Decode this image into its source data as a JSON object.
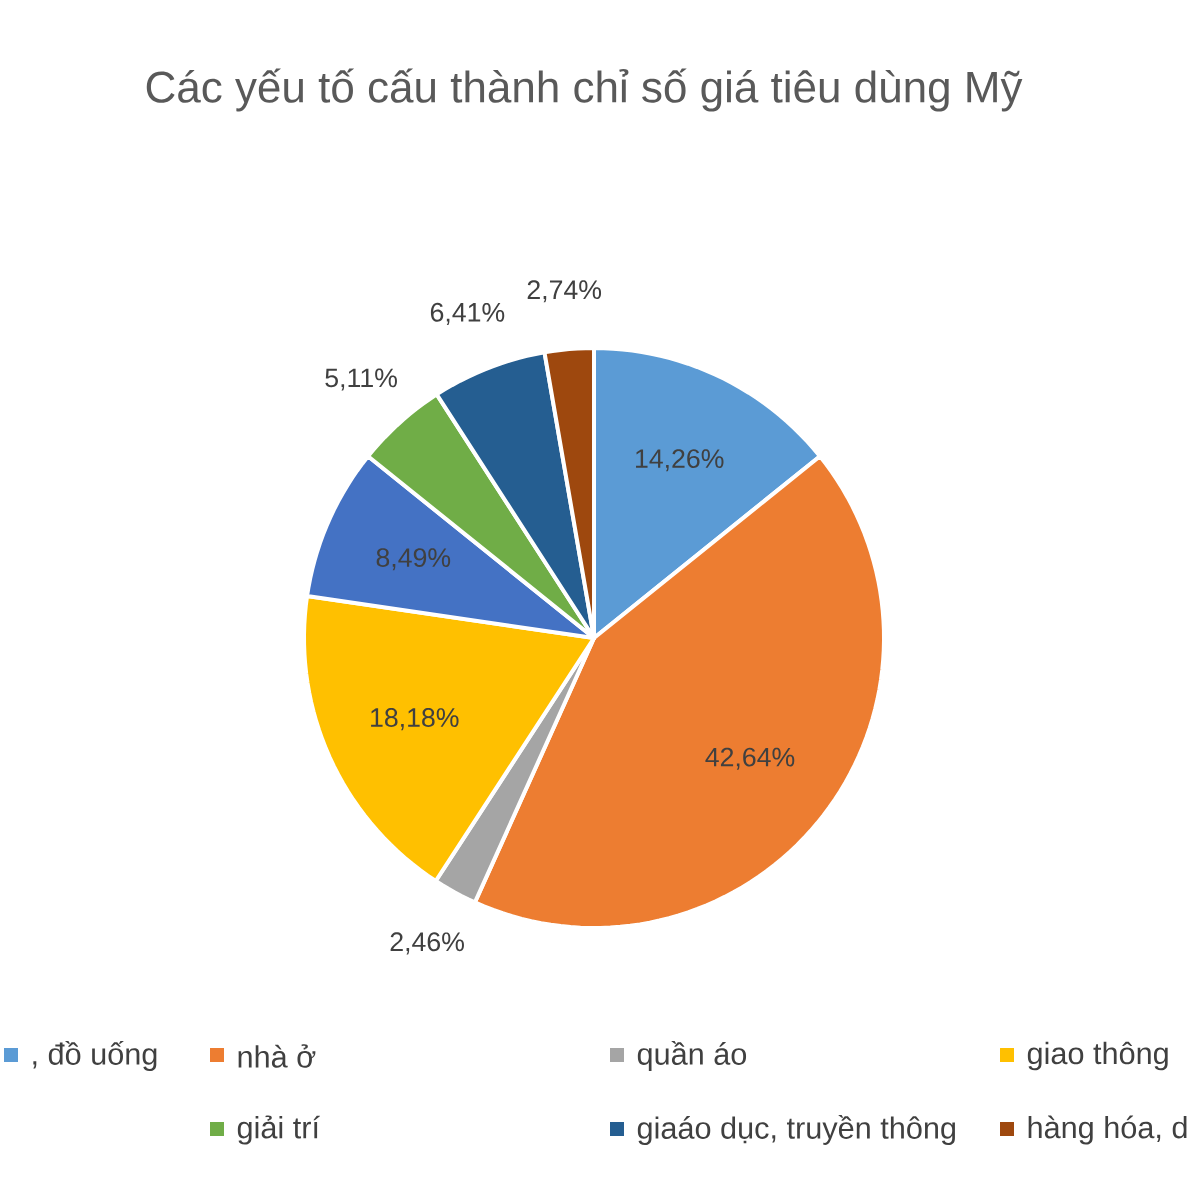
{
  "chart_data": {
    "type": "pie",
    "title": "Các yếu tố cấu thành chỉ số giá tiêu dùng Mỹ",
    "categories": [
      ", đồ uống",
      "nhà ở",
      "quần áo",
      "giao thông",
      null,
      "giải trí",
      "giaáo dục, truyền thông",
      "hàng hóa, d"
    ],
    "values": [
      14.26,
      42.64,
      2.46,
      18.18,
      8.49,
      5.11,
      6.41,
      2.74
    ],
    "value_labels": [
      "14,26%",
      "42,64%",
      "2,46%",
      "18,18%",
      "8,49%",
      "5,11%",
      "6,41%",
      "2,74%"
    ],
    "colors": [
      "#5b9bd5",
      "#ed7d31",
      "#a5a5a5",
      "#ffc000",
      "#4472c4",
      "#70ad47",
      "#255e91",
      "#9e480e"
    ],
    "legend": "bottom"
  }
}
